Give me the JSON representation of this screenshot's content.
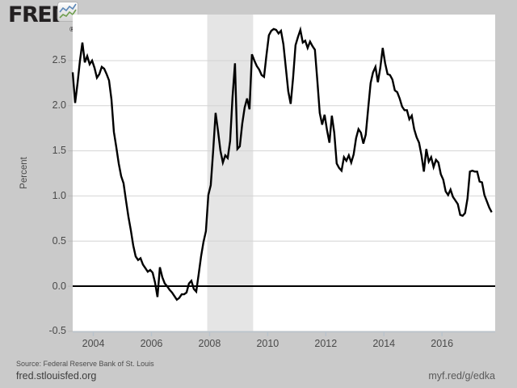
{
  "branding": {
    "logo_text": "FRED",
    "registered_mark": "®",
    "logo_icon": "line-chart-icon"
  },
  "footer": {
    "source": "Source: Federal Reserve Bank of St. Louis",
    "site_link": "fred.stlouisfed.org",
    "short_link": "myf.red/g/edka"
  },
  "chart_data": {
    "type": "line",
    "title": "",
    "xlabel": "",
    "ylabel": "Percent",
    "frequency": "monthly",
    "x_start": "2003-04",
    "x_end": "2017-09",
    "x_domain": [
      2003.29,
      2017.83
    ],
    "x_data_range": [
      2003.29,
      2017.71
    ],
    "xticks": [
      2004,
      2006,
      2008,
      2010,
      2012,
      2014,
      2016
    ],
    "ylim": [
      -0.51,
      3.01
    ],
    "yticks": [
      -0.5,
      0.0,
      0.5,
      1.0,
      1.5,
      2.0,
      2.5
    ],
    "grid": true,
    "zero_line": true,
    "legend": "none",
    "recession_bands": [
      {
        "start": 2007.92,
        "end": 2009.5
      }
    ],
    "series": [
      {
        "name": "percent-series",
        "color": "#000000",
        "values": [
          2.37,
          2.03,
          2.25,
          2.5,
          2.7,
          2.48,
          2.55,
          2.46,
          2.5,
          2.42,
          2.31,
          2.35,
          2.43,
          2.41,
          2.35,
          2.28,
          2.07,
          1.71,
          1.54,
          1.36,
          1.22,
          1.14,
          0.95,
          0.77,
          0.62,
          0.45,
          0.33,
          0.29,
          0.31,
          0.24,
          0.2,
          0.16,
          0.18,
          0.15,
          0.04,
          -0.12,
          0.21,
          0.1,
          0.03,
          0.0,
          -0.04,
          -0.07,
          -0.11,
          -0.15,
          -0.13,
          -0.09,
          -0.09,
          -0.07,
          0.03,
          0.06,
          -0.03,
          -0.06,
          0.13,
          0.33,
          0.49,
          0.61,
          1.01,
          1.12,
          1.5,
          1.92,
          1.72,
          1.5,
          1.37,
          1.45,
          1.42,
          1.61,
          2.1,
          2.47,
          1.52,
          1.55,
          1.8,
          1.98,
          2.08,
          1.96,
          2.57,
          2.5,
          2.44,
          2.4,
          2.34,
          2.32,
          2.56,
          2.78,
          2.83,
          2.85,
          2.84,
          2.8,
          2.83,
          2.68,
          2.42,
          2.16,
          2.02,
          2.31,
          2.67,
          2.76,
          2.84,
          2.7,
          2.72,
          2.64,
          2.71,
          2.66,
          2.62,
          2.28,
          1.92,
          1.79,
          1.9,
          1.73,
          1.59,
          1.89,
          1.7,
          1.36,
          1.31,
          1.28,
          1.43,
          1.39,
          1.45,
          1.37,
          1.46,
          1.64,
          1.74,
          1.7,
          1.58,
          1.68,
          1.97,
          2.25,
          2.37,
          2.43,
          2.26,
          2.42,
          2.64,
          2.47,
          2.35,
          2.34,
          2.29,
          2.17,
          2.15,
          2.08,
          1.99,
          1.95,
          1.95,
          1.85,
          1.89,
          1.74,
          1.65,
          1.59,
          1.45,
          1.27,
          1.52,
          1.38,
          1.43,
          1.32,
          1.4,
          1.37,
          1.24,
          1.18,
          1.05,
          1.01,
          1.07,
          0.99,
          0.95,
          0.91,
          0.79,
          0.78,
          0.81,
          0.97,
          1.27,
          1.28,
          1.27,
          1.27,
          1.16,
          1.15,
          1.01,
          0.94,
          0.87,
          0.82
        ]
      }
    ],
    "colors": {
      "page_background": "#cacaca",
      "plot_background": "#ffffff",
      "recession_band": "#e5e5e5",
      "gridline": "#d4d4d4",
      "axis": "#b9c3cc",
      "tick": "#b9b9b9",
      "line": "#000000",
      "text": "#4a4a4a"
    }
  }
}
